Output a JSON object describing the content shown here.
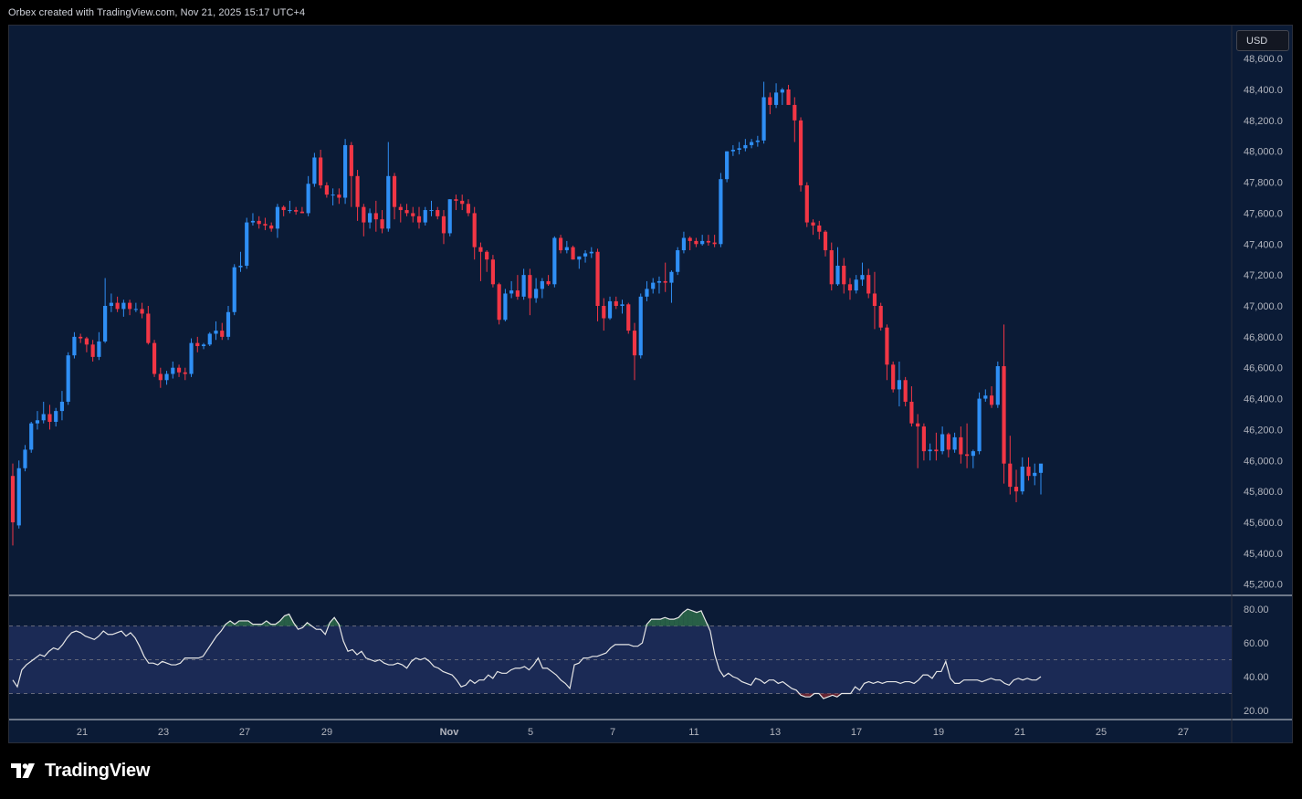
{
  "header": {
    "attribution": "Orbex created with TradingView.com, Nov 21, 2025 15:17 UTC+4"
  },
  "currency": "USD",
  "footer": {
    "brand": "TradingView"
  },
  "colors": {
    "background": "#0b1b36",
    "up": "#2f8ff5",
    "down": "#f23645",
    "rsi_line": "#e6e6e6",
    "rsi_band": "#1b2a55",
    "overbought_fill": "#2e6b4a",
    "oversold_fill": "#7a2833"
  },
  "chart_data": [
    {
      "type": "candlestick",
      "title": "",
      "ylim": [
        45100,
        48700
      ],
      "y_ticks": [
        "45,200.0",
        "45,400.0",
        "45,600.0",
        "45,800.0",
        "46,000.0",
        "46,200.0",
        "46,400.0",
        "46,600.0",
        "46,800.0",
        "47,000.0",
        "47,200.0",
        "47,400.0",
        "47,600.0",
        "47,800.0",
        "48,000.0",
        "48,200.0",
        "48,400.0",
        "48,600.0"
      ],
      "x_ticks": [
        "21",
        "23",
        "27",
        "29",
        "Nov",
        "5",
        "7",
        "11",
        "13",
        "17",
        "19",
        "21",
        "25",
        "27"
      ],
      "ohlc": [
        [
          45900,
          45980,
          45450,
          45600
        ],
        [
          45580,
          46000,
          45560,
          45950
        ],
        [
          45950,
          46100,
          45930,
          46070
        ],
        [
          46070,
          46250,
          46050,
          46240
        ],
        [
          46240,
          46320,
          46200,
          46260
        ],
        [
          46260,
          46380,
          46240,
          46300
        ],
        [
          46300,
          46360,
          46200,
          46250
        ],
        [
          46250,
          46340,
          46220,
          46320
        ],
        [
          46320,
          46450,
          46260,
          46380
        ],
        [
          46380,
          46700,
          46360,
          46680
        ],
        [
          46680,
          46830,
          46660,
          46800
        ],
        [
          46800,
          46820,
          46760,
          46790
        ],
        [
          46790,
          46800,
          46700,
          46750
        ],
        [
          46750,
          46780,
          46640,
          46670
        ],
        [
          46670,
          46830,
          46650,
          46770
        ],
        [
          46770,
          47180,
          46760,
          47000
        ],
        [
          47000,
          47080,
          46960,
          47020
        ],
        [
          47020,
          47060,
          46960,
          46980
        ],
        [
          46980,
          47040,
          46930,
          47020
        ],
        [
          47020,
          47040,
          46940,
          46980
        ],
        [
          46980,
          47020,
          46960,
          46980
        ],
        [
          46980,
          47020,
          46920,
          46950
        ],
        [
          46950,
          47000,
          46750,
          46760
        ],
        [
          46760,
          46780,
          46540,
          46560
        ],
        [
          46560,
          46600,
          46470,
          46520
        ],
        [
          46520,
          46580,
          46490,
          46560
        ],
        [
          46560,
          46640,
          46530,
          46600
        ],
        [
          46600,
          46620,
          46540,
          46570
        ],
        [
          46570,
          46600,
          46520,
          46560
        ],
        [
          46560,
          46790,
          46540,
          46760
        ],
        [
          46760,
          46800,
          46700,
          46740
        ],
        [
          46740,
          46760,
          46720,
          46750
        ],
        [
          46750,
          46830,
          46740,
          46820
        ],
        [
          46820,
          46900,
          46780,
          46840
        ],
        [
          46840,
          46890,
          46780,
          46800
        ],
        [
          46800,
          47000,
          46780,
          46960
        ],
        [
          46960,
          47270,
          46940,
          47250
        ],
        [
          47250,
          47350,
          47220,
          47260
        ],
        [
          47260,
          47570,
          47240,
          47540
        ],
        [
          47540,
          47600,
          47520,
          47550
        ],
        [
          47550,
          47580,
          47500,
          47530
        ],
        [
          47530,
          47570,
          47490,
          47520
        ],
        [
          47520,
          47540,
          47480,
          47500
        ],
        [
          47500,
          47660,
          47440,
          47640
        ],
        [
          47640,
          47650,
          47580,
          47620
        ],
        [
          47620,
          47680,
          47600,
          47620
        ],
        [
          47620,
          47640,
          47590,
          47610
        ],
        [
          47610,
          47640,
          47600,
          47600
        ],
        [
          47600,
          47840,
          47580,
          47790
        ],
        [
          47790,
          47990,
          47770,
          47960
        ],
        [
          47960,
          48010,
          47760,
          47780
        ],
        [
          47780,
          47800,
          47700,
          47720
        ],
        [
          47720,
          47760,
          47650,
          47720
        ],
        [
          47720,
          47760,
          47660,
          47700
        ],
        [
          47700,
          48080,
          47660,
          48040
        ],
        [
          48040,
          48060,
          47640,
          47840
        ],
        [
          47840,
          47880,
          47550,
          47640
        ],
        [
          47640,
          47660,
          47450,
          47540
        ],
        [
          47540,
          47630,
          47500,
          47600
        ],
        [
          47600,
          47680,
          47480,
          47560
        ],
        [
          47560,
          47620,
          47470,
          47500
        ],
        [
          47500,
          48060,
          47480,
          47840
        ],
        [
          47840,
          47860,
          47560,
          47640
        ],
        [
          47640,
          47660,
          47540,
          47620
        ],
        [
          47620,
          47660,
          47580,
          47600
        ],
        [
          47600,
          47640,
          47540,
          47580
        ],
        [
          47580,
          47640,
          47500,
          47540
        ],
        [
          47540,
          47640,
          47520,
          47620
        ],
        [
          47620,
          47680,
          47580,
          47620
        ],
        [
          47620,
          47640,
          47560,
          47580
        ],
        [
          47580,
          47620,
          47400,
          47470
        ],
        [
          47470,
          47690,
          47450,
          47690
        ],
        [
          47690,
          47720,
          47620,
          47680
        ],
        [
          47680,
          47720,
          47620,
          47660
        ],
        [
          47660,
          47690,
          47580,
          47600
        ],
        [
          47600,
          47640,
          47300,
          47380
        ],
        [
          47380,
          47410,
          47160,
          47350
        ],
        [
          47350,
          47360,
          47220,
          47300
        ],
        [
          47300,
          47330,
          47120,
          47140
        ],
        [
          47140,
          47150,
          46880,
          46910
        ],
        [
          46910,
          47110,
          46900,
          47080
        ],
        [
          47080,
          47160,
          47050,
          47100
        ],
        [
          47100,
          47200,
          47040,
          47060
        ],
        [
          47060,
          47240,
          47040,
          47200
        ],
        [
          47200,
          47240,
          46940,
          47050
        ],
        [
          47050,
          47180,
          47020,
          47110
        ],
        [
          47110,
          47180,
          47050,
          47160
        ],
        [
          47160,
          47200,
          47130,
          47140
        ],
        [
          47140,
          47450,
          47120,
          47440
        ],
        [
          47440,
          47460,
          47340,
          47360
        ],
        [
          47360,
          47420,
          47340,
          47380
        ],
        [
          47380,
          47390,
          47300,
          47300
        ],
        [
          47300,
          47320,
          47240,
          47320
        ],
        [
          47320,
          47360,
          47280,
          47340
        ],
        [
          47340,
          47380,
          47310,
          47350
        ],
        [
          47350,
          47370,
          46900,
          47000
        ],
        [
          47000,
          47050,
          46840,
          46920
        ],
        [
          46920,
          47060,
          46910,
          47030
        ],
        [
          47030,
          47060,
          46980,
          47000
        ],
        [
          47000,
          47040,
          46950,
          47010
        ],
        [
          47010,
          47020,
          46820,
          46840
        ],
        [
          46840,
          46890,
          46520,
          46680
        ],
        [
          46680,
          47080,
          46660,
          47060
        ],
        [
          47060,
          47160,
          47030,
          47110
        ],
        [
          47110,
          47180,
          47080,
          47150
        ],
        [
          47150,
          47190,
          47080,
          47160
        ],
        [
          47160,
          47280,
          47090,
          47150
        ],
        [
          47150,
          47230,
          47020,
          47220
        ],
        [
          47220,
          47380,
          47200,
          47360
        ],
        [
          47360,
          47480,
          47340,
          47440
        ],
        [
          47440,
          47450,
          47360,
          47420
        ],
        [
          47420,
          47440,
          47380,
          47400
        ],
        [
          47400,
          47460,
          47390,
          47420
        ],
        [
          47420,
          47460,
          47390,
          47410
        ],
        [
          47410,
          47460,
          47380,
          47400
        ],
        [
          47400,
          47860,
          47380,
          47820
        ],
        [
          47820,
          48000,
          47800,
          48000
        ],
        [
          48000,
          48040,
          47970,
          48010
        ],
        [
          48010,
          48060,
          47980,
          48020
        ],
        [
          48020,
          48080,
          48000,
          48040
        ],
        [
          48040,
          48080,
          48020,
          48060
        ],
        [
          48060,
          48100,
          48030,
          48070
        ],
        [
          48070,
          48450,
          48050,
          48350
        ],
        [
          48350,
          48380,
          48240,
          48300
        ],
        [
          48300,
          48440,
          48280,
          48380
        ],
        [
          48380,
          48410,
          48300,
          48400
        ],
        [
          48400,
          48430,
          48330,
          48300
        ],
        [
          48300,
          48350,
          48060,
          48200
        ],
        [
          48200,
          48220,
          47740,
          47780
        ],
        [
          47780,
          47800,
          47510,
          47540
        ],
        [
          47540,
          47560,
          47460,
          47520
        ],
        [
          47520,
          47550,
          47430,
          47480
        ],
        [
          47480,
          47490,
          47320,
          47360
        ],
        [
          47360,
          47410,
          47100,
          47140
        ],
        [
          47140,
          47380,
          47130,
          47260
        ],
        [
          47260,
          47310,
          47080,
          47140
        ],
        [
          47140,
          47180,
          47040,
          47100
        ],
        [
          47100,
          47200,
          47080,
          47170
        ],
        [
          47170,
          47280,
          47130,
          47200
        ],
        [
          47200,
          47240,
          47050,
          47080
        ],
        [
          47080,
          47220,
          46850,
          47000
        ],
        [
          47000,
          47020,
          46840,
          46860
        ],
        [
          46860,
          46880,
          46520,
          46620
        ],
        [
          46620,
          46640,
          46440,
          46460
        ],
        [
          46460,
          46640,
          46350,
          46520
        ],
        [
          46520,
          46540,
          46350,
          46380
        ],
        [
          46380,
          46480,
          46220,
          46240
        ],
        [
          46240,
          46300,
          45950,
          46220
        ],
        [
          46220,
          46240,
          46000,
          46060
        ],
        [
          46060,
          46110,
          46000,
          46070
        ],
        [
          46070,
          46180,
          46000,
          46060
        ],
        [
          46060,
          46220,
          46040,
          46170
        ],
        [
          46170,
          46180,
          46020,
          46070
        ],
        [
          46070,
          46180,
          46050,
          46150
        ],
        [
          46150,
          46220,
          45980,
          46040
        ],
        [
          46040,
          46240,
          45950,
          46030
        ],
        [
          46030,
          46070,
          45950,
          46060
        ],
        [
          46060,
          46440,
          46040,
          46400
        ],
        [
          46400,
          46460,
          46380,
          46420
        ],
        [
          46420,
          46480,
          46340,
          46360
        ],
        [
          46360,
          46640,
          46340,
          46610
        ],
        [
          46610,
          46880,
          45850,
          45980
        ],
        [
          45980,
          46160,
          45780,
          45830
        ],
        [
          45830,
          45940,
          45730,
          45800
        ],
        [
          45800,
          46020,
          45780,
          45960
        ],
        [
          45960,
          46020,
          45870,
          45900
        ],
        [
          45900,
          45980,
          45840,
          45920
        ],
        [
          45920,
          45960,
          45780,
          45980
        ]
      ]
    },
    {
      "type": "line",
      "title": "",
      "ylim": [
        15,
        85
      ],
      "y_ticks": [
        "20.00",
        "40.00",
        "60.00",
        "80.00"
      ],
      "bands": [
        30,
        50,
        70
      ],
      "values": [
        38,
        34,
        44,
        47,
        49,
        51,
        53,
        52,
        55,
        57,
        56,
        59,
        63,
        66,
        67,
        66,
        64,
        63,
        62,
        64,
        67,
        65,
        65,
        66,
        67,
        64,
        66,
        63,
        58,
        52,
        48,
        48,
        47,
        49,
        48,
        47,
        47,
        48,
        51,
        51,
        51,
        51,
        52,
        56,
        60,
        64,
        67,
        71,
        73,
        71,
        73,
        73,
        73,
        71,
        71,
        71,
        73,
        71,
        71,
        73,
        76,
        77,
        72,
        68,
        69,
        72,
        70,
        68,
        68,
        65,
        72,
        75,
        71,
        61,
        55,
        56,
        53,
        55,
        51,
        50,
        49,
        50,
        48,
        47,
        47,
        48,
        47,
        45,
        49,
        51,
        50,
        51,
        49,
        46,
        45,
        43,
        42,
        41,
        38,
        34,
        35,
        38,
        36,
        38,
        38,
        41,
        39,
        43,
        42,
        42,
        44,
        45,
        45,
        46,
        44,
        47,
        51,
        45,
        45,
        43,
        41,
        38,
        36,
        33,
        47,
        48,
        51,
        51,
        52,
        52,
        53,
        54,
        57,
        59,
        59,
        59,
        59,
        58,
        58,
        60,
        71,
        74,
        74,
        74,
        75,
        74,
        74,
        75,
        78,
        80,
        79,
        78,
        79,
        73,
        67,
        53,
        44,
        40,
        42,
        40,
        39,
        37,
        36,
        35,
        39,
        38,
        36,
        38,
        38,
        36,
        37,
        35,
        33,
        32,
        29,
        28,
        28,
        30,
        30,
        27,
        28,
        29,
        28,
        30,
        30,
        30,
        34,
        32,
        36,
        37,
        36,
        37,
        36,
        37,
        37,
        37,
        36,
        37,
        37,
        36,
        38,
        41,
        41,
        39,
        43,
        43,
        49,
        39,
        36,
        36,
        38,
        38,
        38,
        38,
        37,
        38,
        39,
        38,
        38,
        36,
        35,
        38,
        39,
        38,
        39,
        38,
        38,
        40
      ]
    }
  ]
}
